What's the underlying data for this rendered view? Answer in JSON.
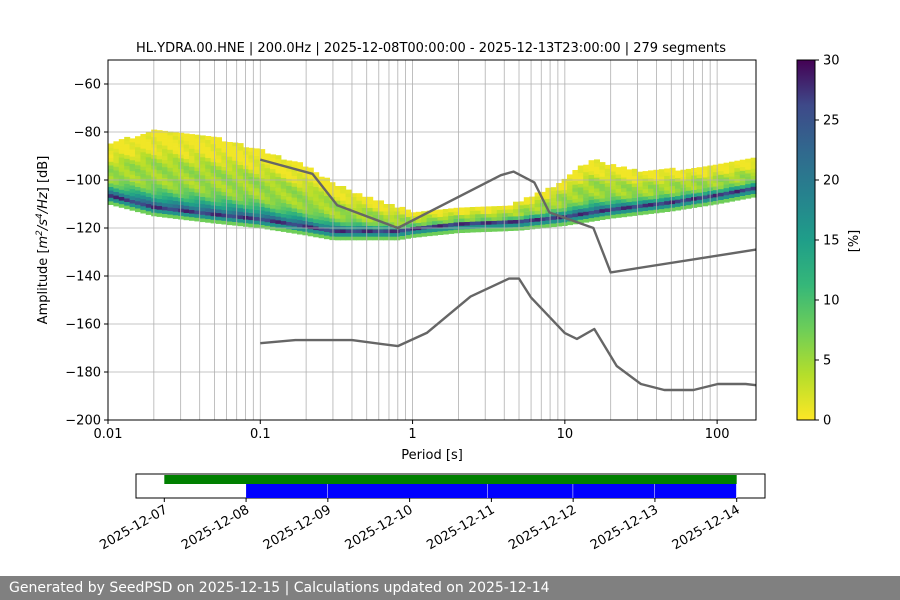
{
  "chart_data": [
    {
      "type": "heatmap",
      "title": "HL.YDRA.00.HNE | 200.0Hz | 2025-12-08T00:00:00 - 2025-12-13T23:00:00 | 279 segments",
      "xlabel": "Period [s]",
      "ylabel_prefix": "Amplitude [",
      "ylabel_math_parts": [
        "m",
        "2",
        "/s",
        "4",
        "/Hz",
        "] [dB]"
      ],
      "x_scale": "log",
      "xlim": [
        0.01,
        180
      ],
      "ylim": [
        -200,
        -50
      ],
      "x_tick_labels": [
        "0.01",
        "0.1",
        "1",
        "10",
        "100"
      ],
      "x_ticks": [
        0.01,
        0.1,
        1,
        10,
        100
      ],
      "y_ticks": [
        -200,
        -180,
        -160,
        -140,
        -120,
        -100,
        -80,
        -60
      ],
      "grid": "vertical at log minor ticks and horizontal at y ticks",
      "colormap": "viridis_r",
      "colorbar": {
        "label": "[%]",
        "range": [
          0,
          30
        ],
        "ticks": [
          0,
          5,
          10,
          15,
          20,
          25,
          30
        ]
      },
      "psd_ridge": {
        "x": [
          0.01,
          0.02,
          0.05,
          0.1,
          0.2,
          0.3,
          0.5,
          0.8,
          1,
          2,
          5,
          10,
          20,
          50,
          100,
          180
        ],
        "y": [
          -107,
          -112,
          -115,
          -117,
          -120,
          -122,
          -122,
          -122,
          -121,
          -119,
          -118,
          -116,
          -113,
          -110,
          -107,
          -104
        ]
      },
      "psd_upper_edge": {
        "x": [
          0.01,
          0.02,
          0.05,
          0.1,
          0.2,
          0.3,
          0.5,
          1,
          2,
          4,
          8,
          15,
          30,
          60,
          100,
          180
        ],
        "y": [
          -86,
          -80,
          -83,
          -88,
          -95,
          -102,
          -108,
          -114,
          -113,
          -112,
          -104,
          -92,
          -97,
          -96,
          -95,
          -92
        ]
      },
      "high_noise_model": {
        "x": [
          0.1,
          0.22,
          0.32,
          0.8,
          3.8,
          4.6,
          6.3,
          7.9,
          15.4,
          20,
          180
        ],
        "y": [
          -91.5,
          -97.4,
          -110.5,
          -120,
          -98,
          -96.5,
          -101,
          -113.5,
          -120,
          -138.5,
          -129
        ]
      },
      "low_noise_model": {
        "x": [
          0.1,
          0.17,
          0.4,
          0.8,
          1.24,
          2.4,
          4.3,
          5,
          6,
          10,
          12,
          15.6,
          21.9,
          31.6,
          45,
          70,
          101,
          154,
          180
        ],
        "y": [
          -168,
          -166.7,
          -166.7,
          -169.2,
          -163.7,
          -148.6,
          -141.1,
          -141.1,
          -149,
          -163.8,
          -166.2,
          -162.1,
          -177.5,
          -185,
          -187.5,
          -187.5,
          -185,
          -185,
          -185.5
        ]
      },
      "line_color": "#666666"
    },
    {
      "type": "timeline",
      "dates": [
        "2025-12-07",
        "2025-12-08",
        "2025-12-09",
        "2025-12-10",
        "2025-12-11",
        "2025-12-12",
        "2025-12-13",
        "2025-12-14"
      ],
      "data_span": {
        "start": "2025-12-07T00:00",
        "end": "2025-12-14T00:00",
        "color": "#008000"
      },
      "psd_segments": [
        {
          "start": "2025-12-08T00:00",
          "end": "2025-12-09T00:00"
        },
        {
          "start": "2025-12-09T00:00",
          "end": "2025-12-10T23:00"
        },
        {
          "start": "2025-12-10T23:00",
          "end": "2025-12-12T00:00"
        },
        {
          "start": "2025-12-12T00:00",
          "end": "2025-12-13T00:00"
        },
        {
          "start": "2025-12-13T00:00",
          "end": "2025-12-14T00:00"
        }
      ],
      "segment_color": "#0000ff"
    }
  ],
  "footer": {
    "text": "Generated by SeedPSD on 2025-12-15 | Calculations updated on 2025-12-14"
  }
}
